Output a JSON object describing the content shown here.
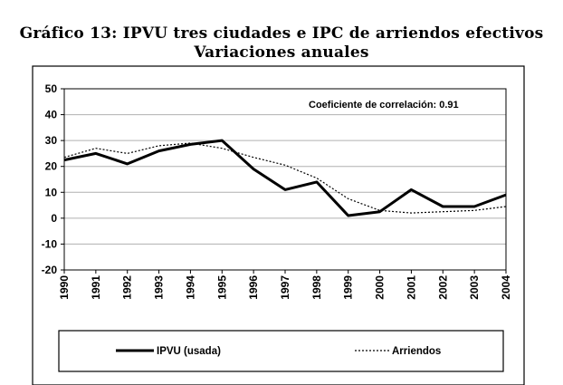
{
  "header": {
    "title_line1": "Gráfico 13: IPVU tres ciudades e IPC de arriendos efectivos",
    "title_line2": "Variaciones anuales"
  },
  "chart_data": {
    "type": "line",
    "title": "Gráfico 13: IPVU tres ciudades e IPC de arriendos efectivos — Variaciones anuales",
    "xlabel": "",
    "ylabel": "",
    "categories": [
      "1990",
      "1991",
      "1992",
      "1993",
      "1994",
      "1995",
      "1996",
      "1997",
      "1998",
      "1999",
      "2000",
      "2001",
      "2002",
      "2003",
      "2004"
    ],
    "ylim": [
      -20,
      50
    ],
    "yticks": [
      -20,
      -10,
      0,
      10,
      20,
      30,
      40,
      50
    ],
    "grid": true,
    "annotation": "Coeficiente de correlación: 0.91",
    "series": [
      {
        "name": "IPVU (usada)",
        "style": "solid",
        "color": "#000000",
        "values": [
          22.5,
          25,
          21,
          26,
          28.5,
          30,
          19,
          11,
          14,
          1,
          2.5,
          11,
          4.5,
          4.5,
          9
        ]
      },
      {
        "name": "Arriendos",
        "style": "dotted",
        "color": "#000000",
        "values": [
          23.5,
          27,
          25,
          28,
          29,
          27,
          23.5,
          20.5,
          15.5,
          7.5,
          3,
          2,
          2.5,
          3,
          4.5
        ]
      }
    ]
  }
}
